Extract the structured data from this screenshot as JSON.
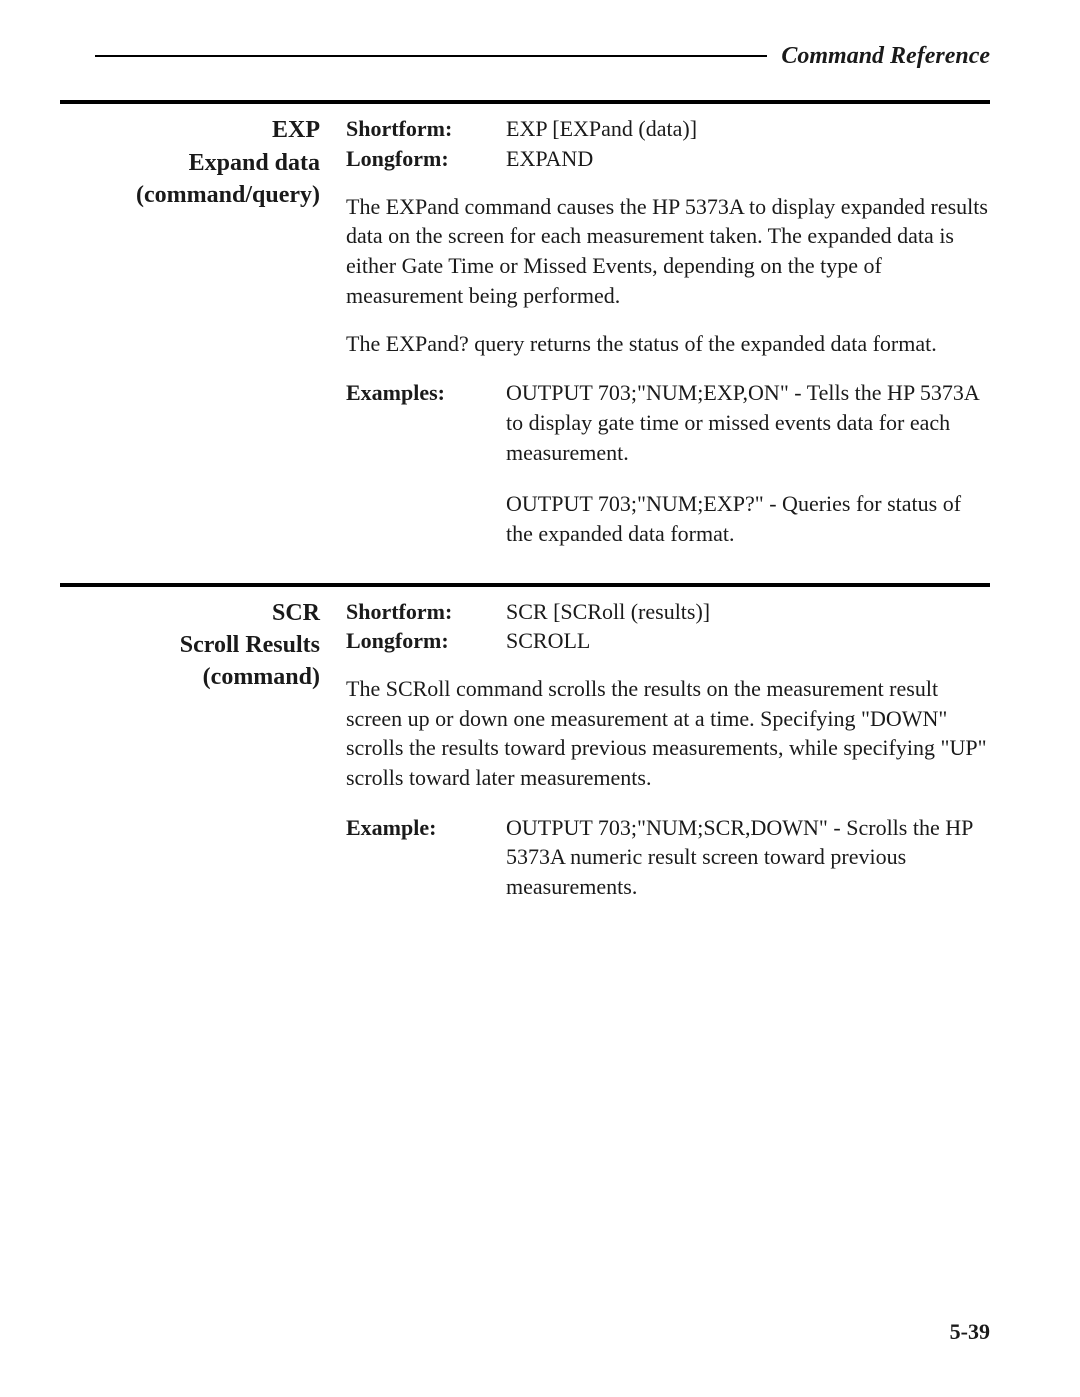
{
  "header": {
    "title": "Command Reference"
  },
  "blocks": [
    {
      "title_lines": [
        "EXP",
        "Expand data",
        "(command/query)"
      ],
      "shortform_label": "Shortform:",
      "shortform_value": "EXP [EXPand (data)]",
      "longform_label": "Longform:",
      "longform_value": "EXPAND",
      "paragraphs": [
        "The EXPand command causes the HP 5373A to display expanded results data on the screen for each measurement taken. The expanded data is either Gate Time or Missed Events, depending on the type of measurement being performed.",
        "The EXPand? query returns the status of the expanded data format."
      ],
      "examples_label": "Examples:",
      "examples": [
        "OUTPUT 703;\"NUM;EXP,ON\" - Tells the HP 5373A to display gate time or missed events data for each measurement.",
        "OUTPUT 703;\"NUM;EXP?\" - Queries for status of the expanded data format."
      ]
    },
    {
      "title_lines": [
        "SCR",
        "Scroll Results",
        "(command)"
      ],
      "shortform_label": "Shortform:",
      "shortform_value": "SCR [SCRoll (results)]",
      "longform_label": "Longform:",
      "longform_value": "SCROLL",
      "paragraphs": [
        "The SCRoll command scrolls the results on the measurement result screen up or down one measurement at a time. Specifying \"DOWN\"  scrolls the results toward previous measurements, while specifying \"UP\" scrolls toward later measurements."
      ],
      "examples_label": "Example:",
      "examples": [
        "OUTPUT 703;\"NUM;SCR,DOWN\" - Scrolls the HP 5373A numeric result screen toward previous measurements."
      ]
    }
  ],
  "page_number": "5-39"
}
